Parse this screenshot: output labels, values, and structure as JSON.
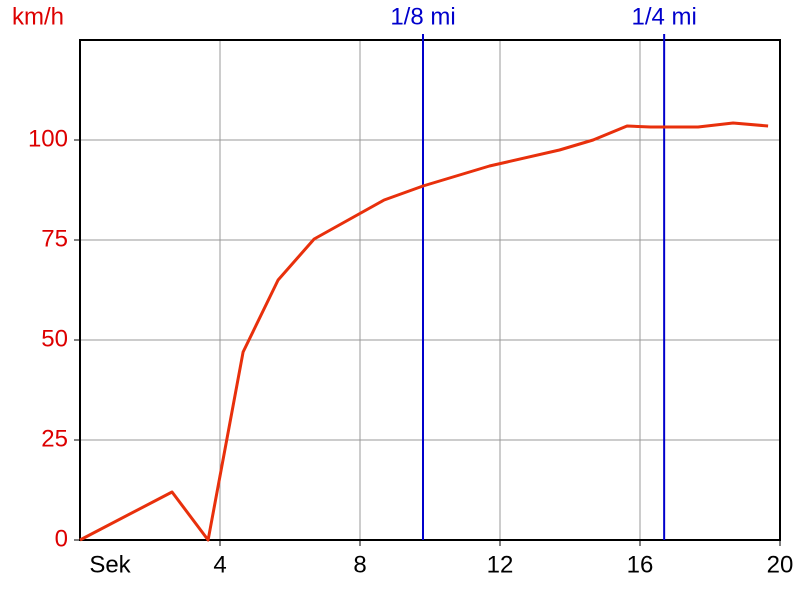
{
  "chart_data": {
    "type": "line",
    "y_label": "km/h",
    "x_label": "Sek",
    "x": [
      0,
      2.63,
      3.66,
      4.66,
      5.66,
      6.69,
      8.69,
      9.8,
      11.7,
      13.7,
      14.66,
      15.63,
      16.3,
      17.66,
      18.66,
      19.66
    ],
    "series": [
      {
        "name": "km/h",
        "color": "#e8300c",
        "values": [
          0,
          12,
          0,
          47,
          65,
          75.25,
          85,
          88.5,
          93.5,
          97.5,
          100,
          103.5,
          103.25,
          103.25,
          104.25,
          103.5
        ]
      }
    ],
    "xlim": [
      0,
      20
    ],
    "xticks": [
      4,
      8,
      12,
      16,
      20
    ],
    "ylim": [
      0,
      125
    ],
    "yticks": [
      0,
      25,
      50,
      75,
      100
    ],
    "grid": true,
    "markers": [
      {
        "label": "1/8 mi",
        "x": 9.8,
        "color": "#0000cc"
      },
      {
        "label": "1/4 mi",
        "x": 16.69,
        "color": "#0000cc"
      }
    ]
  }
}
